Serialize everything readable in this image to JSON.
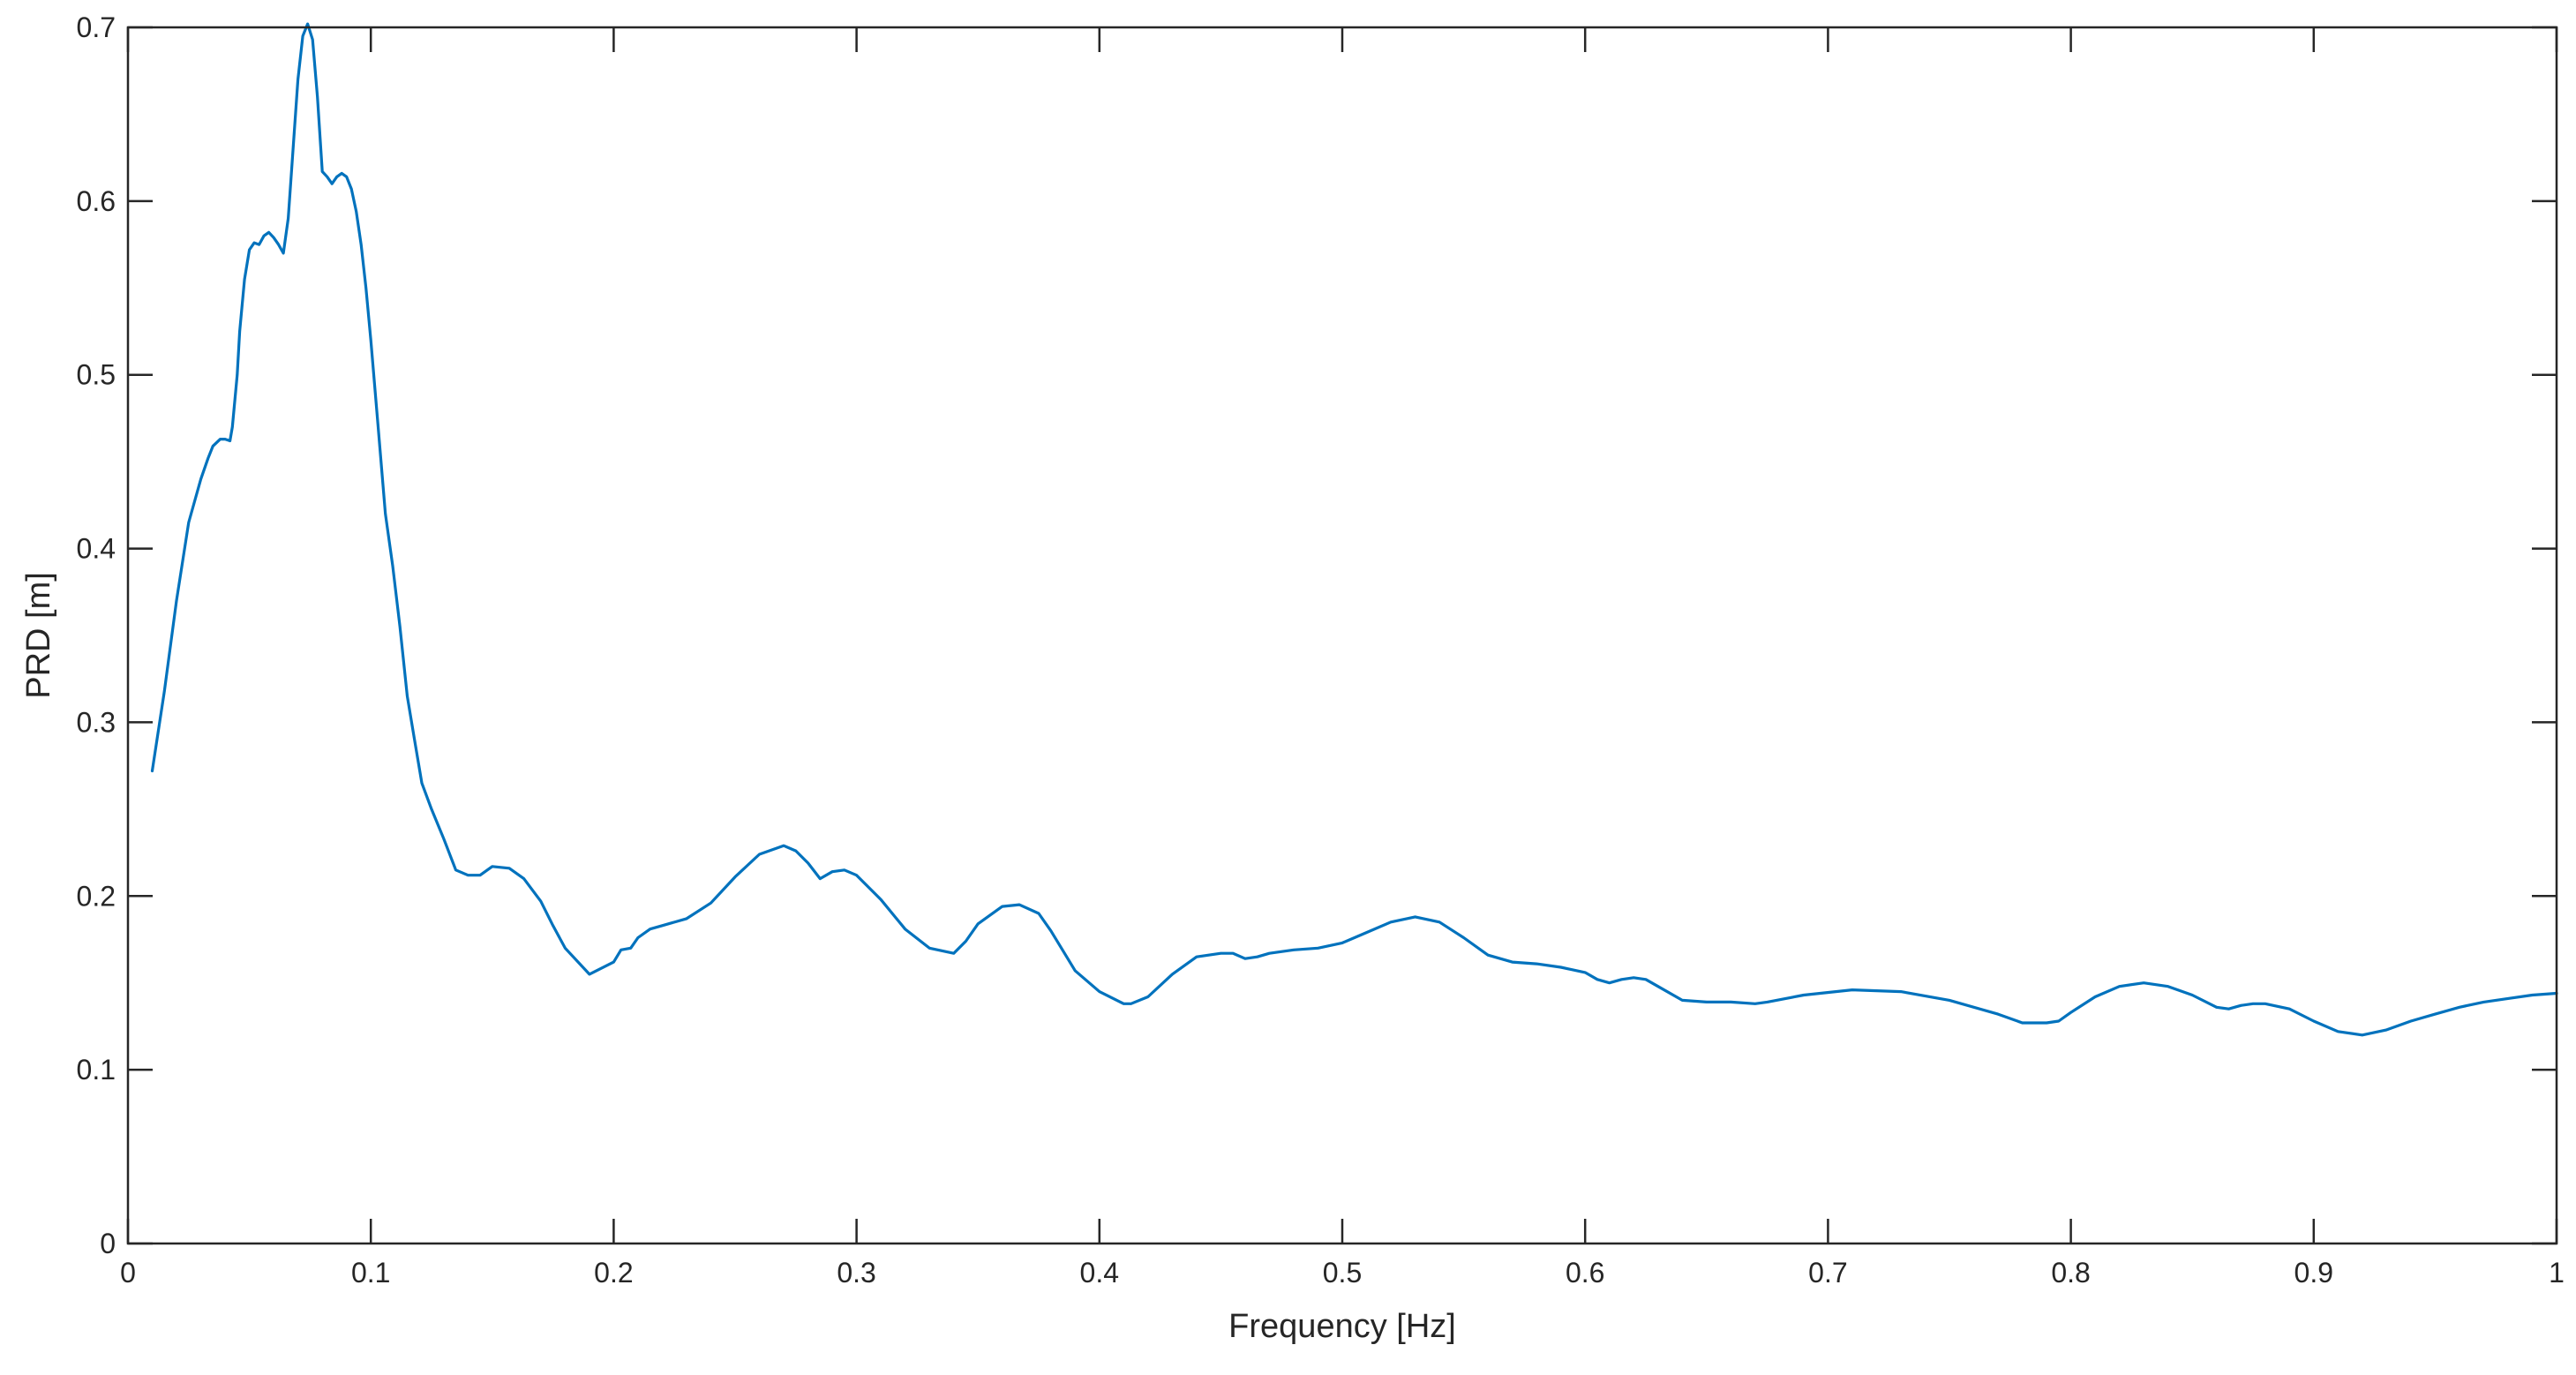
{
  "chart_data": {
    "type": "line",
    "title": "",
    "xlabel": "Frequency [Hz]",
    "ylabel": "PRD [m]",
    "xlim": [
      0,
      1
    ],
    "ylim": [
      0,
      0.7
    ],
    "xticks": [
      0,
      0.1,
      0.2,
      0.3,
      0.4,
      0.5,
      0.6,
      0.7,
      0.8,
      0.9,
      1
    ],
    "xtick_labels": [
      "0",
      "0.1",
      "0.2",
      "0.3",
      "0.4",
      "0.5",
      "0.6",
      "0.7",
      "0.8",
      "0.9",
      "1"
    ],
    "yticks": [
      0,
      0.1,
      0.2,
      0.3,
      0.4,
      0.5,
      0.6,
      0.7
    ],
    "ytick_labels": [
      "0",
      "0.1",
      "0.2",
      "0.3",
      "0.4",
      "0.5",
      "0.6",
      "0.7"
    ],
    "grid": false,
    "box": true,
    "line_color": "#0072BD",
    "series": [
      {
        "x": [
          0.01,
          0.015,
          0.02,
          0.025,
          0.03,
          0.033,
          0.035,
          0.038,
          0.04,
          0.042,
          0.043,
          0.045,
          0.046,
          0.048,
          0.05,
          0.052,
          0.054,
          0.056,
          0.058,
          0.06,
          0.062,
          0.064,
          0.066,
          0.068,
          0.07,
          0.072,
          0.074,
          0.076,
          0.078,
          0.08,
          0.082,
          0.084,
          0.086,
          0.088,
          0.09,
          0.092,
          0.094,
          0.096,
          0.098,
          0.1,
          0.103,
          0.106,
          0.109,
          0.112,
          0.115,
          0.118,
          0.121,
          0.125,
          0.13,
          0.135,
          0.14,
          0.145,
          0.15,
          0.157,
          0.163,
          0.17,
          0.175,
          0.18,
          0.19,
          0.2,
          0.203,
          0.207,
          0.21,
          0.215,
          0.22,
          0.23,
          0.24,
          0.25,
          0.26,
          0.27,
          0.275,
          0.28,
          0.285,
          0.29,
          0.295,
          0.3,
          0.31,
          0.32,
          0.33,
          0.34,
          0.345,
          0.35,
          0.36,
          0.367,
          0.375,
          0.38,
          0.39,
          0.4,
          0.41,
          0.413,
          0.42,
          0.43,
          0.44,
          0.45,
          0.455,
          0.46,
          0.465,
          0.47,
          0.48,
          0.49,
          0.5,
          0.51,
          0.52,
          0.53,
          0.54,
          0.55,
          0.56,
          0.57,
          0.58,
          0.59,
          0.6,
          0.605,
          0.61,
          0.615,
          0.62,
          0.625,
          0.63,
          0.64,
          0.65,
          0.66,
          0.67,
          0.675,
          0.69,
          0.71,
          0.73,
          0.75,
          0.77,
          0.78,
          0.79,
          0.795,
          0.8,
          0.81,
          0.82,
          0.83,
          0.84,
          0.85,
          0.86,
          0.865,
          0.87,
          0.875,
          0.88,
          0.89,
          0.9,
          0.91,
          0.92,
          0.93,
          0.94,
          0.95,
          0.96,
          0.97,
          0.98,
          0.99,
          1.0
        ],
        "y": [
          0.272,
          0.318,
          0.37,
          0.415,
          0.44,
          0.452,
          0.459,
          0.463,
          0.463,
          0.462,
          0.47,
          0.5,
          0.525,
          0.555,
          0.572,
          0.576,
          0.575,
          0.58,
          0.582,
          0.579,
          0.575,
          0.57,
          0.59,
          0.63,
          0.67,
          0.695,
          0.702,
          0.693,
          0.66,
          0.617,
          0.614,
          0.61,
          0.614,
          0.616,
          0.614,
          0.607,
          0.594,
          0.575,
          0.55,
          0.52,
          0.47,
          0.42,
          0.39,
          0.355,
          0.315,
          0.29,
          0.265,
          0.25,
          0.233,
          0.215,
          0.212,
          0.212,
          0.217,
          0.216,
          0.21,
          0.197,
          0.183,
          0.17,
          0.155,
          0.162,
          0.169,
          0.17,
          0.176,
          0.181,
          0.183,
          0.187,
          0.196,
          0.211,
          0.224,
          0.229,
          0.226,
          0.219,
          0.21,
          0.214,
          0.215,
          0.212,
          0.198,
          0.181,
          0.17,
          0.167,
          0.174,
          0.184,
          0.194,
          0.195,
          0.19,
          0.18,
          0.157,
          0.145,
          0.138,
          0.138,
          0.142,
          0.155,
          0.165,
          0.167,
          0.167,
          0.164,
          0.165,
          0.167,
          0.169,
          0.17,
          0.173,
          0.179,
          0.185,
          0.188,
          0.185,
          0.176,
          0.166,
          0.162,
          0.161,
          0.159,
          0.156,
          0.152,
          0.15,
          0.152,
          0.153,
          0.152,
          0.148,
          0.14,
          0.139,
          0.139,
          0.138,
          0.139,
          0.143,
          0.146,
          0.145,
          0.14,
          0.132,
          0.127,
          0.127,
          0.128,
          0.133,
          0.142,
          0.148,
          0.15,
          0.148,
          0.143,
          0.136,
          0.135,
          0.137,
          0.138,
          0.138,
          0.135,
          0.128,
          0.122,
          0.12,
          0.123,
          0.128,
          0.132,
          0.136,
          0.139,
          0.141,
          0.143,
          0.144
        ]
      }
    ]
  }
}
